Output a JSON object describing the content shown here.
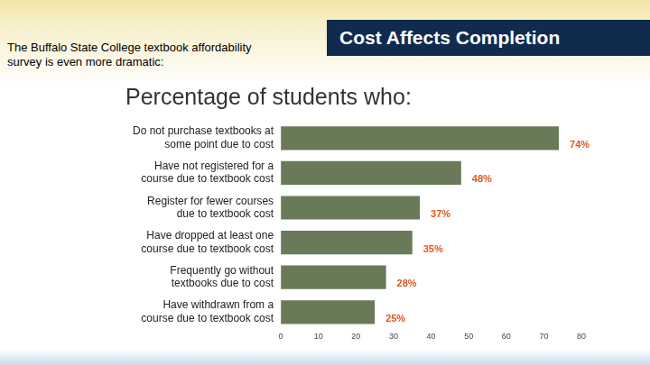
{
  "header": {
    "title": "Cost Affects Completion"
  },
  "caption": "The Buffalo State College textbook affordability\nsurvey is even more dramatic:",
  "chart_data": {
    "type": "bar",
    "orientation": "horizontal",
    "title": "Percentage of students who:",
    "categories": [
      "Do not purchase textbooks at\nsome point due to cost",
      "Have not registered for a\ncourse due to textbook cost",
      "Register for fewer courses\ndue to textbook cost",
      "Have dropped at least one\ncourse due to textbook cost",
      "Frequently go without\ntextbooks due to cost",
      "Have withdrawn from a\ncourse due to textbook cost"
    ],
    "values": [
      74,
      48,
      37,
      35,
      28,
      25
    ],
    "value_labels": [
      "74%",
      "48%",
      "37%",
      "35%",
      "28%",
      "25%"
    ],
    "color": "#697a59",
    "xlim": [
      0,
      80
    ],
    "xticks": [
      0,
      10,
      20,
      30,
      40,
      50,
      60,
      70,
      80
    ],
    "grid": false,
    "data_labels": true
  }
}
